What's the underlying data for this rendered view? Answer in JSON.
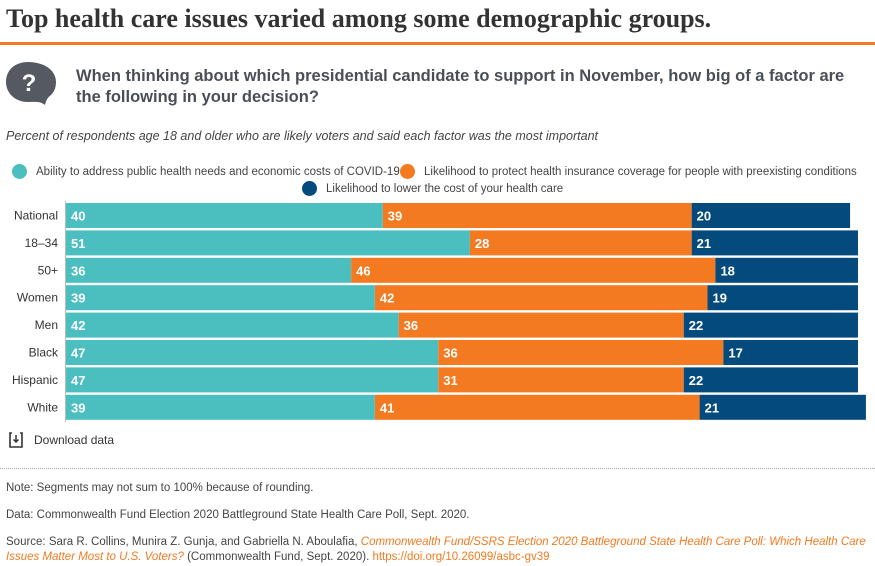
{
  "header": {
    "title": "Top health care issues varied among some demographic groups.",
    "question": "When thinking about which presidential candidate to support in November, how big of a factor are the following in your decision?",
    "subtitle": "Percent of respondents age 18 and older who are likely voters and said each factor was the most important"
  },
  "chart_data": {
    "type": "bar",
    "stacked": true,
    "orientation": "horizontal",
    "categories": [
      "National",
      "18–34",
      "50+",
      "Women",
      "Men",
      "Black",
      "Hispanic",
      "White"
    ],
    "series": [
      {
        "name": "Ability to address public health needs and economic costs of COVID-19",
        "color": "#4bbfbf",
        "values": [
          40,
          51,
          36,
          39,
          42,
          47,
          47,
          39
        ]
      },
      {
        "name": "Likelihood to protect health insurance coverage for people with preexisting conditions",
        "color": "#f37a20",
        "values": [
          39,
          28,
          46,
          42,
          36,
          36,
          31,
          41
        ]
      },
      {
        "name": "Likelihood to lower the cost of your health care",
        "color": "#044a7c",
        "values": [
          20,
          21,
          18,
          19,
          22,
          17,
          22,
          21
        ]
      }
    ],
    "xlim": [
      0,
      100
    ],
    "legend": "top"
  },
  "download": {
    "label": "Download data",
    "icon": "download-icon"
  },
  "footer": {
    "note": "Note: Segments may not sum to 100% because of rounding.",
    "data": "Data: Commonwealth Fund Election 2020 Battleground State Health Care Poll, Sept. 2020.",
    "source_prefix": "Source: Sara R. Collins, Munira Z. Gunja, and Gabriella N. Aboulafia, ",
    "source_title": "Commonwealth Fund/SSRS Election 2020 Battleground State Health Care Poll: Which Health Care Issues Matter Most to U.S. Voters?",
    "source_suffix": " (Commonwealth Fund, Sept. 2020). ",
    "source_link": "https://doi.org/10.26099/asbc-gv39"
  }
}
